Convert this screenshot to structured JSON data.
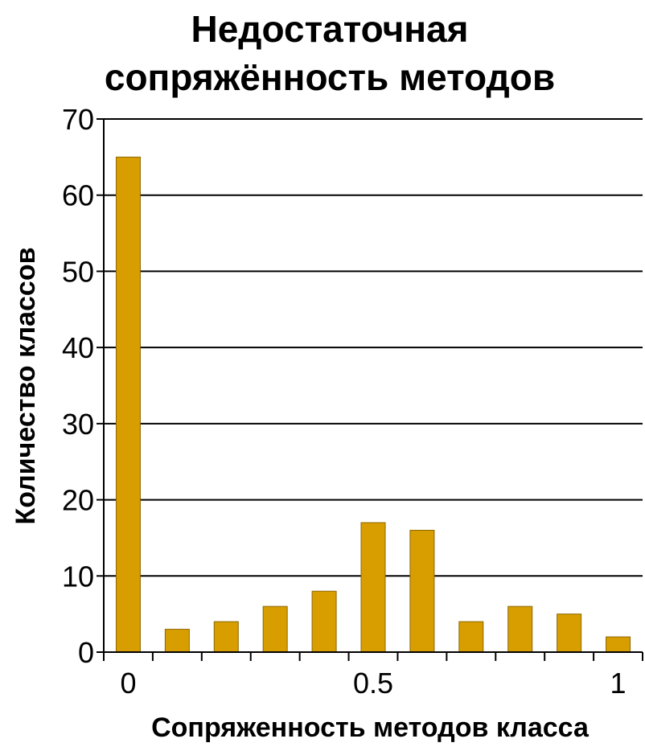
{
  "chart_data": {
    "type": "bar",
    "title_lines": [
      "Недостаточная",
      "сопряжённость методов"
    ],
    "xlabel": "Сопряженность методов класса",
    "ylabel": "Количество классов",
    "categories": [
      "0",
      "0.1",
      "0.2",
      "0.3",
      "0.4",
      "0.5",
      "0.6",
      "0.7",
      "0.8",
      "0.9",
      "1"
    ],
    "values": [
      65,
      3,
      4,
      6,
      8,
      17,
      16,
      4,
      6,
      5,
      2
    ],
    "ylim": [
      0,
      70
    ],
    "yticks": [
      "0",
      "10",
      "20",
      "30",
      "40",
      "50",
      "60",
      "70"
    ],
    "xtick_labels": [
      {
        "category_index": 0,
        "label": "0"
      },
      {
        "category_index": 5,
        "label": "0.5"
      },
      {
        "category_index": 10,
        "label": "1"
      }
    ],
    "grid": true,
    "bar_color": "#D89E00",
    "bar_border_color": "#8C6600"
  }
}
